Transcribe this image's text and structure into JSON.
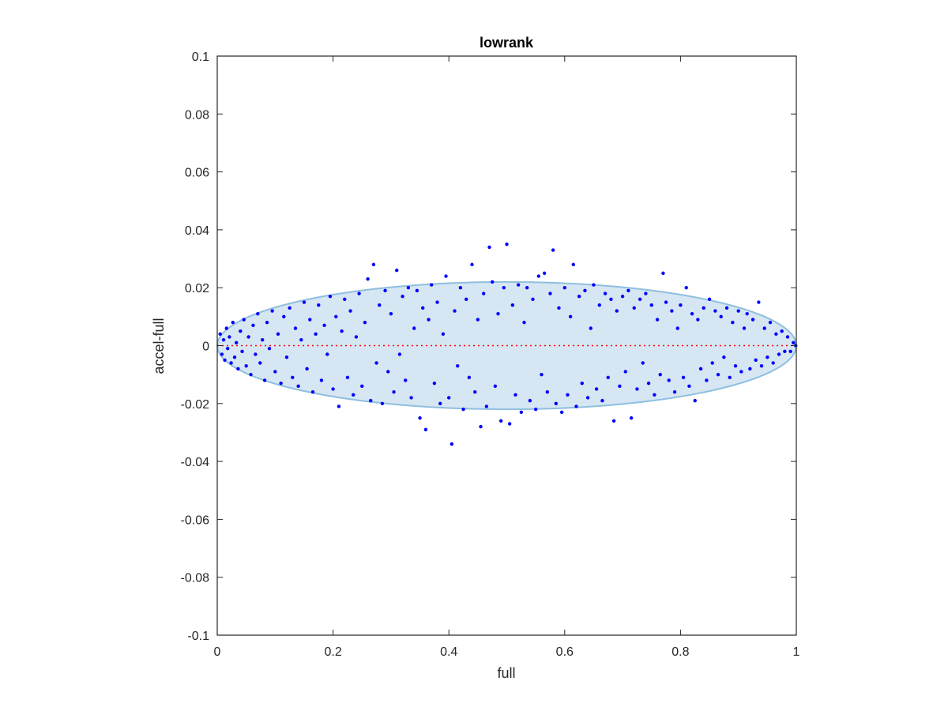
{
  "chart_data": {
    "type": "scatter",
    "title": "lowrank",
    "xlabel": "full",
    "ylabel": "accel-full",
    "xlim": [
      0,
      1
    ],
    "ylim": [
      -0.1,
      0.1
    ],
    "xticks": [
      0,
      0.2,
      0.4,
      0.6,
      0.8,
      1
    ],
    "xtick_labels": [
      "0",
      "0.2",
      "0.4",
      "0.6",
      "0.8",
      "1"
    ],
    "yticks": [
      -0.1,
      -0.08,
      -0.06,
      -0.04,
      -0.02,
      0,
      0.02,
      0.04,
      0.06,
      0.08,
      0.1
    ],
    "ytick_labels": [
      "-0.1",
      "-0.08",
      "-0.06",
      "-0.04",
      "-0.02",
      "0",
      "0.02",
      "0.04",
      "0.06",
      "0.08",
      "0.1"
    ],
    "grid": false,
    "box": true,
    "reference_line": {
      "y": 0,
      "style": "dotted",
      "color": "#ff0000"
    },
    "envelope": {
      "shape": "ellipse",
      "center": [
        0.5,
        0
      ],
      "x_semi_axis": 0.5,
      "y_semi_axis": 0.022,
      "fill": "#d6e6f3",
      "stroke": "#8fbfe0"
    },
    "series": [
      {
        "marker": "dot",
        "color": "#0000ff",
        "points": [
          [
            0.005,
            0.004
          ],
          [
            0.008,
            -0.003
          ],
          [
            0.011,
            0.002
          ],
          [
            0.013,
            -0.005
          ],
          [
            0.016,
            0.006
          ],
          [
            0.018,
            -0.001
          ],
          [
            0.021,
            0.003
          ],
          [
            0.024,
            -0.006
          ],
          [
            0.027,
            0.008
          ],
          [
            0.03,
            -0.004
          ],
          [
            0.033,
            0.001
          ],
          [
            0.036,
            -0.008
          ],
          [
            0.04,
            0.005
          ],
          [
            0.043,
            -0.002
          ],
          [
            0.046,
            0.009
          ],
          [
            0.05,
            -0.007
          ],
          [
            0.054,
            0.003
          ],
          [
            0.058,
            -0.01
          ],
          [
            0.062,
            0.007
          ],
          [
            0.066,
            -0.003
          ],
          [
            0.07,
            0.011
          ],
          [
            0.074,
            -0.006
          ],
          [
            0.078,
            0.002
          ],
          [
            0.082,
            -0.012
          ],
          [
            0.086,
            0.008
          ],
          [
            0.09,
            -0.001
          ],
          [
            0.095,
            0.012
          ],
          [
            0.1,
            -0.009
          ],
          [
            0.105,
            0.004
          ],
          [
            0.11,
            -0.013
          ],
          [
            0.115,
            0.01
          ],
          [
            0.12,
            -0.004
          ],
          [
            0.125,
            0.013
          ],
          [
            0.13,
            -0.011
          ],
          [
            0.135,
            0.006
          ],
          [
            0.14,
            -0.014
          ],
          [
            0.145,
            0.002
          ],
          [
            0.15,
            0.015
          ],
          [
            0.155,
            -0.008
          ],
          [
            0.16,
            0.009
          ],
          [
            0.165,
            -0.016
          ],
          [
            0.17,
            0.004
          ],
          [
            0.175,
            0.014
          ],
          [
            0.18,
            -0.012
          ],
          [
            0.185,
            0.007
          ],
          [
            0.19,
            -0.003
          ],
          [
            0.195,
            0.017
          ],
          [
            0.2,
            -0.015
          ],
          [
            0.205,
            0.01
          ],
          [
            0.21,
            -0.021
          ],
          [
            0.215,
            0.005
          ],
          [
            0.22,
            0.016
          ],
          [
            0.225,
            -0.011
          ],
          [
            0.23,
            0.012
          ],
          [
            0.235,
            -0.017
          ],
          [
            0.24,
            0.003
          ],
          [
            0.245,
            0.018
          ],
          [
            0.25,
            -0.014
          ],
          [
            0.255,
            0.008
          ],
          [
            0.26,
            0.023
          ],
          [
            0.265,
            -0.019
          ],
          [
            0.27,
            0.028
          ],
          [
            0.275,
            -0.006
          ],
          [
            0.28,
            0.014
          ],
          [
            0.285,
            -0.02
          ],
          [
            0.29,
            0.019
          ],
          [
            0.295,
            -0.009
          ],
          [
            0.3,
            0.011
          ],
          [
            0.305,
            -0.016
          ],
          [
            0.31,
            0.026
          ],
          [
            0.315,
            -0.003
          ],
          [
            0.32,
            0.017
          ],
          [
            0.325,
            -0.012
          ],
          [
            0.33,
            0.02
          ],
          [
            0.335,
            -0.018
          ],
          [
            0.34,
            0.006
          ],
          [
            0.345,
            0.019
          ],
          [
            0.35,
            -0.025
          ],
          [
            0.355,
            0.013
          ],
          [
            0.36,
            -0.029
          ],
          [
            0.365,
            0.009
          ],
          [
            0.37,
            0.021
          ],
          [
            0.375,
            -0.013
          ],
          [
            0.38,
            0.015
          ],
          [
            0.385,
            -0.02
          ],
          [
            0.39,
            0.004
          ],
          [
            0.395,
            0.024
          ],
          [
            0.4,
            -0.018
          ],
          [
            0.405,
            -0.034
          ],
          [
            0.41,
            0.012
          ],
          [
            0.415,
            -0.007
          ],
          [
            0.42,
            0.02
          ],
          [
            0.425,
            -0.022
          ],
          [
            0.43,
            0.016
          ],
          [
            0.435,
            -0.011
          ],
          [
            0.44,
            0.028
          ],
          [
            0.445,
            -0.016
          ],
          [
            0.45,
            0.009
          ],
          [
            0.455,
            -0.028
          ],
          [
            0.46,
            0.018
          ],
          [
            0.465,
            -0.021
          ],
          [
            0.47,
            0.034
          ],
          [
            0.475,
            0.022
          ],
          [
            0.48,
            -0.014
          ],
          [
            0.485,
            0.011
          ],
          [
            0.49,
            -0.026
          ],
          [
            0.495,
            0.02
          ],
          [
            0.5,
            0.035
          ],
          [
            0.505,
            -0.027
          ],
          [
            0.51,
            0.014
          ],
          [
            0.515,
            -0.017
          ],
          [
            0.52,
            0.021
          ],
          [
            0.525,
            -0.023
          ],
          [
            0.53,
            0.008
          ],
          [
            0.535,
            0.02
          ],
          [
            0.54,
            -0.019
          ],
          [
            0.545,
            0.016
          ],
          [
            0.55,
            -0.022
          ],
          [
            0.555,
            0.024
          ],
          [
            0.56,
            -0.01
          ],
          [
            0.565,
            0.025
          ],
          [
            0.57,
            -0.016
          ],
          [
            0.575,
            0.018
          ],
          [
            0.58,
            0.033
          ],
          [
            0.585,
            -0.02
          ],
          [
            0.59,
            0.013
          ],
          [
            0.595,
            -0.023
          ],
          [
            0.6,
            0.02
          ],
          [
            0.605,
            -0.017
          ],
          [
            0.61,
            0.01
          ],
          [
            0.615,
            0.028
          ],
          [
            0.62,
            -0.021
          ],
          [
            0.625,
            0.017
          ],
          [
            0.63,
            -0.013
          ],
          [
            0.635,
            0.019
          ],
          [
            0.64,
            -0.018
          ],
          [
            0.645,
            0.006
          ],
          [
            0.65,
            0.021
          ],
          [
            0.655,
            -0.015
          ],
          [
            0.66,
            0.014
          ],
          [
            0.665,
            -0.019
          ],
          [
            0.67,
            0.018
          ],
          [
            0.675,
            -0.011
          ],
          [
            0.68,
            0.016
          ],
          [
            0.685,
            -0.026
          ],
          [
            0.69,
            0.012
          ],
          [
            0.695,
            -0.014
          ],
          [
            0.7,
            0.017
          ],
          [
            0.705,
            -0.009
          ],
          [
            0.71,
            0.019
          ],
          [
            0.715,
            -0.025
          ],
          [
            0.72,
            0.013
          ],
          [
            0.725,
            -0.015
          ],
          [
            0.73,
            0.016
          ],
          [
            0.735,
            -0.006
          ],
          [
            0.74,
            0.018
          ],
          [
            0.745,
            -0.013
          ],
          [
            0.75,
            0.014
          ],
          [
            0.755,
            -0.017
          ],
          [
            0.76,
            0.009
          ],
          [
            0.765,
            -0.01
          ],
          [
            0.77,
            0.025
          ],
          [
            0.775,
            0.015
          ],
          [
            0.78,
            -0.012
          ],
          [
            0.785,
            0.012
          ],
          [
            0.79,
            -0.016
          ],
          [
            0.795,
            0.006
          ],
          [
            0.8,
            0.014
          ],
          [
            0.805,
            -0.011
          ],
          [
            0.81,
            0.02
          ],
          [
            0.815,
            -0.014
          ],
          [
            0.82,
            0.011
          ],
          [
            0.825,
            -0.019
          ],
          [
            0.83,
            0.009
          ],
          [
            0.835,
            -0.008
          ],
          [
            0.84,
            0.013
          ],
          [
            0.845,
            -0.012
          ],
          [
            0.85,
            0.016
          ],
          [
            0.855,
            -0.006
          ],
          [
            0.86,
            0.012
          ],
          [
            0.865,
            -0.01
          ],
          [
            0.87,
            0.01
          ],
          [
            0.875,
            -0.004
          ],
          [
            0.88,
            0.013
          ],
          [
            0.885,
            -0.011
          ],
          [
            0.89,
            0.008
          ],
          [
            0.895,
            -0.007
          ],
          [
            0.9,
            0.012
          ],
          [
            0.905,
            -0.009
          ],
          [
            0.91,
            0.006
          ],
          [
            0.915,
            0.011
          ],
          [
            0.92,
            -0.008
          ],
          [
            0.925,
            0.009
          ],
          [
            0.93,
            -0.005
          ],
          [
            0.935,
            0.015
          ],
          [
            0.94,
            -0.007
          ],
          [
            0.945,
            0.006
          ],
          [
            0.95,
            -0.004
          ],
          [
            0.955,
            0.008
          ],
          [
            0.96,
            -0.006
          ],
          [
            0.965,
            0.004
          ],
          [
            0.97,
            -0.003
          ],
          [
            0.975,
            0.005
          ],
          [
            0.98,
            -0.002
          ],
          [
            0.985,
            0.003
          ],
          [
            0.99,
            -0.002
          ],
          [
            0.995,
            0.001
          ],
          [
            0.999,
            0.0
          ]
        ]
      }
    ]
  }
}
